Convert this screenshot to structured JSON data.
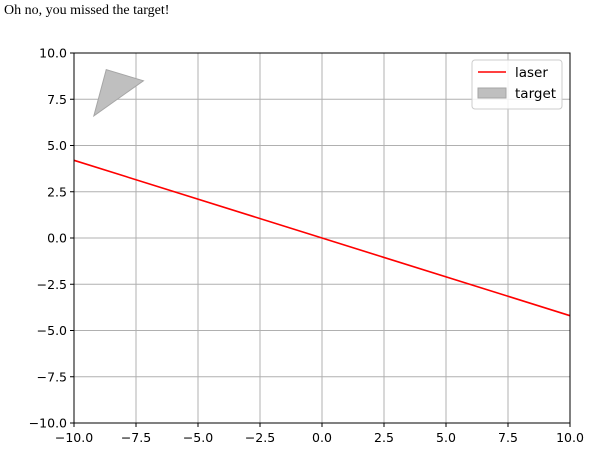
{
  "message": "Oh no, you missed the target!",
  "chart_data": {
    "type": "line",
    "title": "",
    "xlabel": "",
    "ylabel": "",
    "xlim": [
      -10,
      10
    ],
    "ylim": [
      -10,
      10
    ],
    "grid": true,
    "legend_position": "top-right",
    "x_ticks": [
      -10,
      -7.5,
      -5,
      -2.5,
      0,
      2.5,
      5,
      7.5,
      10
    ],
    "y_ticks": [
      -10,
      -7.5,
      -5,
      -2.5,
      0,
      2.5,
      5,
      7.5,
      10
    ],
    "x_tick_labels": [
      "−10.0",
      "−7.5",
      "−5.0",
      "−2.5",
      "0.0",
      "2.5",
      "5.0",
      "7.5",
      "10.0"
    ],
    "y_tick_labels": [
      "−10.0",
      "−7.5",
      "−5.0",
      "−2.5",
      "0.0",
      "2.5",
      "5.0",
      "7.5",
      "10.0"
    ],
    "series": [
      {
        "name": "laser",
        "kind": "line",
        "color": "#ff0000",
        "x": [
          -10,
          10
        ],
        "y": [
          4.2,
          -4.2
        ]
      },
      {
        "name": "target",
        "kind": "polygon",
        "color": "#bfbfbf",
        "edge_color": "#a6a6a6",
        "x": [
          -9.2,
          -8.7,
          -7.2
        ],
        "y": [
          6.6,
          9.1,
          8.5
        ]
      }
    ]
  }
}
